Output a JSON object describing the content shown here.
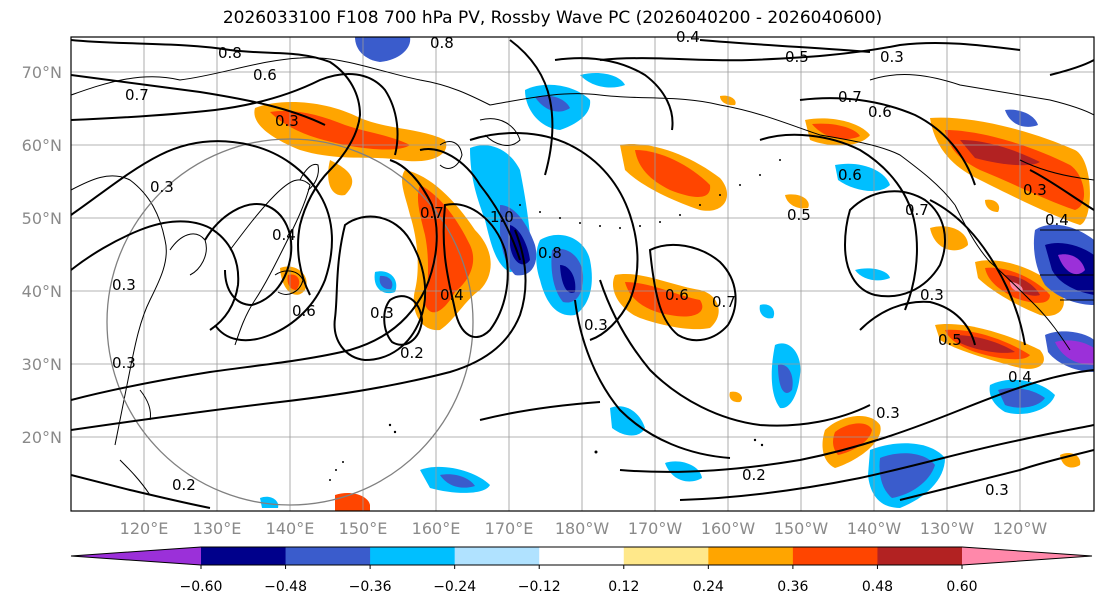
{
  "title": "2026033100 F108 700 hPa PV, Rossby Wave PC (2026040200 - 2026040600)",
  "map": {
    "lat_labels": [
      "70°N",
      "60°N",
      "50°N",
      "40°N",
      "30°N",
      "20°N"
    ],
    "lon_labels": [
      "120°E",
      "130°E",
      "140°E",
      "150°E",
      "160°E",
      "170°E",
      "180°W",
      "170°W",
      "160°W",
      "150°W",
      "140°W",
      "130°W",
      "120°W"
    ],
    "contour_labels": [
      "0.8",
      "0.8",
      "0.4",
      "0.5",
      "0.3",
      "0.6",
      "0.7",
      "0.3",
      "0.7",
      "0.6",
      "0.3",
      "0.7",
      "0.4",
      "1.0",
      "0.8",
      "0.5",
      "0.6",
      "0.7",
      "0.3",
      "0.4",
      "0.3",
      "0.6",
      "0.4",
      "0.3",
      "0.2",
      "0.6",
      "0.3",
      "0.7",
      "0.3",
      "0.5",
      "0.3",
      "0.4",
      "0.3",
      "0.2",
      "0.3",
      "0.2"
    ],
    "colors": {
      "frame": "#000000",
      "grid": "#9a9a9a",
      "coast": "#000000",
      "contour": "#000000",
      "circle": "#808080"
    }
  },
  "colorbar": {
    "levels": [
      "−0.60",
      "−0.48",
      "−0.36",
      "−0.24",
      "−0.12",
      "0.12",
      "0.24",
      "0.36",
      "0.48",
      "0.60"
    ],
    "colors": [
      "#9b30d9",
      "#00008b",
      "#3a5ccc",
      "#00bfff",
      "#b0e2ff",
      "#ffffff",
      "#ffe88a",
      "#ffa500",
      "#ff4500",
      "#b22222",
      "#ff88aa"
    ]
  }
}
